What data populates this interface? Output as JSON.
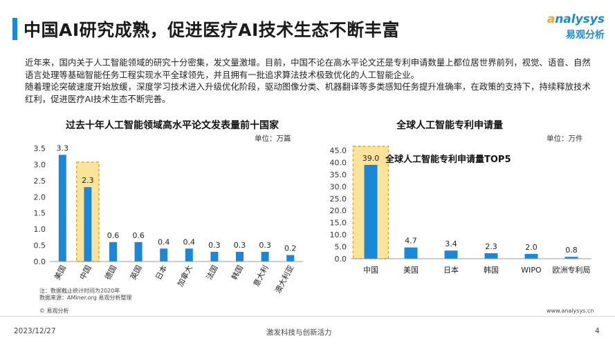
{
  "page": {
    "title": "中国AI研究成熟，促进医疗AI技术生态不断丰富",
    "logo": {
      "top": "nalysys",
      "accent": "a",
      "sub": "易观分析"
    },
    "intro": [
      "近年来，国内关于人工智能领域的研究十分密集，发文量激增。目前，中国不论在高水平论文还是专利申请数量上都位居世界前列，视觉、语音、自然语言处理等基础智能任务工程实现水平全球领先，并且拥有一批追求算法技术极致优化的人工智能企业。",
      "随着理论突破速度开始放缓，深度学习技术进入升级优化阶段，驱动图像分类、机器翻译等多类感知任务提升准确率，在政策的支持下，持续释放技术红利，促进医疗AI技术生态不断完善。"
    ],
    "copyright": "© 易观分析",
    "website": "www.analysys.cn",
    "footer": {
      "date": "2023/12/27",
      "center": "激发科技与创新活力",
      "page_number": "4"
    }
  },
  "chart_data": [
    {
      "type": "bar",
      "title": "过去十年人工智能领域高水平论文发表量前十国家",
      "unit": "单位：万篇",
      "categories": [
        "美国",
        "中国",
        "德国",
        "英国",
        "日本",
        "加拿大",
        "法国",
        "韩国",
        "意大利",
        "澳大利亚"
      ],
      "values": [
        3.3,
        2.3,
        0.6,
        0.6,
        0.4,
        0.4,
        0.3,
        0.3,
        0.3,
        0.2
      ],
      "value_labels": [
        "3.3",
        "2.3",
        "0.6",
        "0.6",
        "0.4",
        "0.4",
        "0.3",
        "0.3",
        "0.3",
        "0.2"
      ],
      "yticks": [
        "0.0",
        "0.5",
        "1.0",
        "1.5",
        "2.0",
        "2.5",
        "3.0",
        "3.5"
      ],
      "ylim": [
        0,
        3.5
      ],
      "highlight_index": 1,
      "grid": false,
      "notes": [
        "注：数据截止统计时间为2020年",
        "数据来源：AMiner.org 易观分析整理"
      ],
      "bar_color": "#1a88d8",
      "highlight_color": "#fbe49a"
    },
    {
      "type": "bar",
      "title": "全球人工智能专利申请量",
      "unit": "单位：万件",
      "annotation": "全球人工智能专利申请量TOP5",
      "categories": [
        "中国",
        "美国",
        "日本",
        "韩国",
        "WIPO",
        "欧洲专利局"
      ],
      "values": [
        39.0,
        4.7,
        3.4,
        2.3,
        2.0,
        0.8
      ],
      "value_labels": [
        "39.0",
        "4.7",
        "3.4",
        "2.3",
        "2.0",
        "0.8"
      ],
      "yticks": [
        "0.0",
        "5.0",
        "10.0",
        "15.0",
        "20.0",
        "25.0",
        "30.0",
        "35.0",
        "40.0",
        "45.0"
      ],
      "ylim": [
        0,
        45
      ],
      "highlight_index": 0,
      "grid": false,
      "bar_color": "#1a88d8",
      "highlight_color": "#fbe49a"
    }
  ]
}
